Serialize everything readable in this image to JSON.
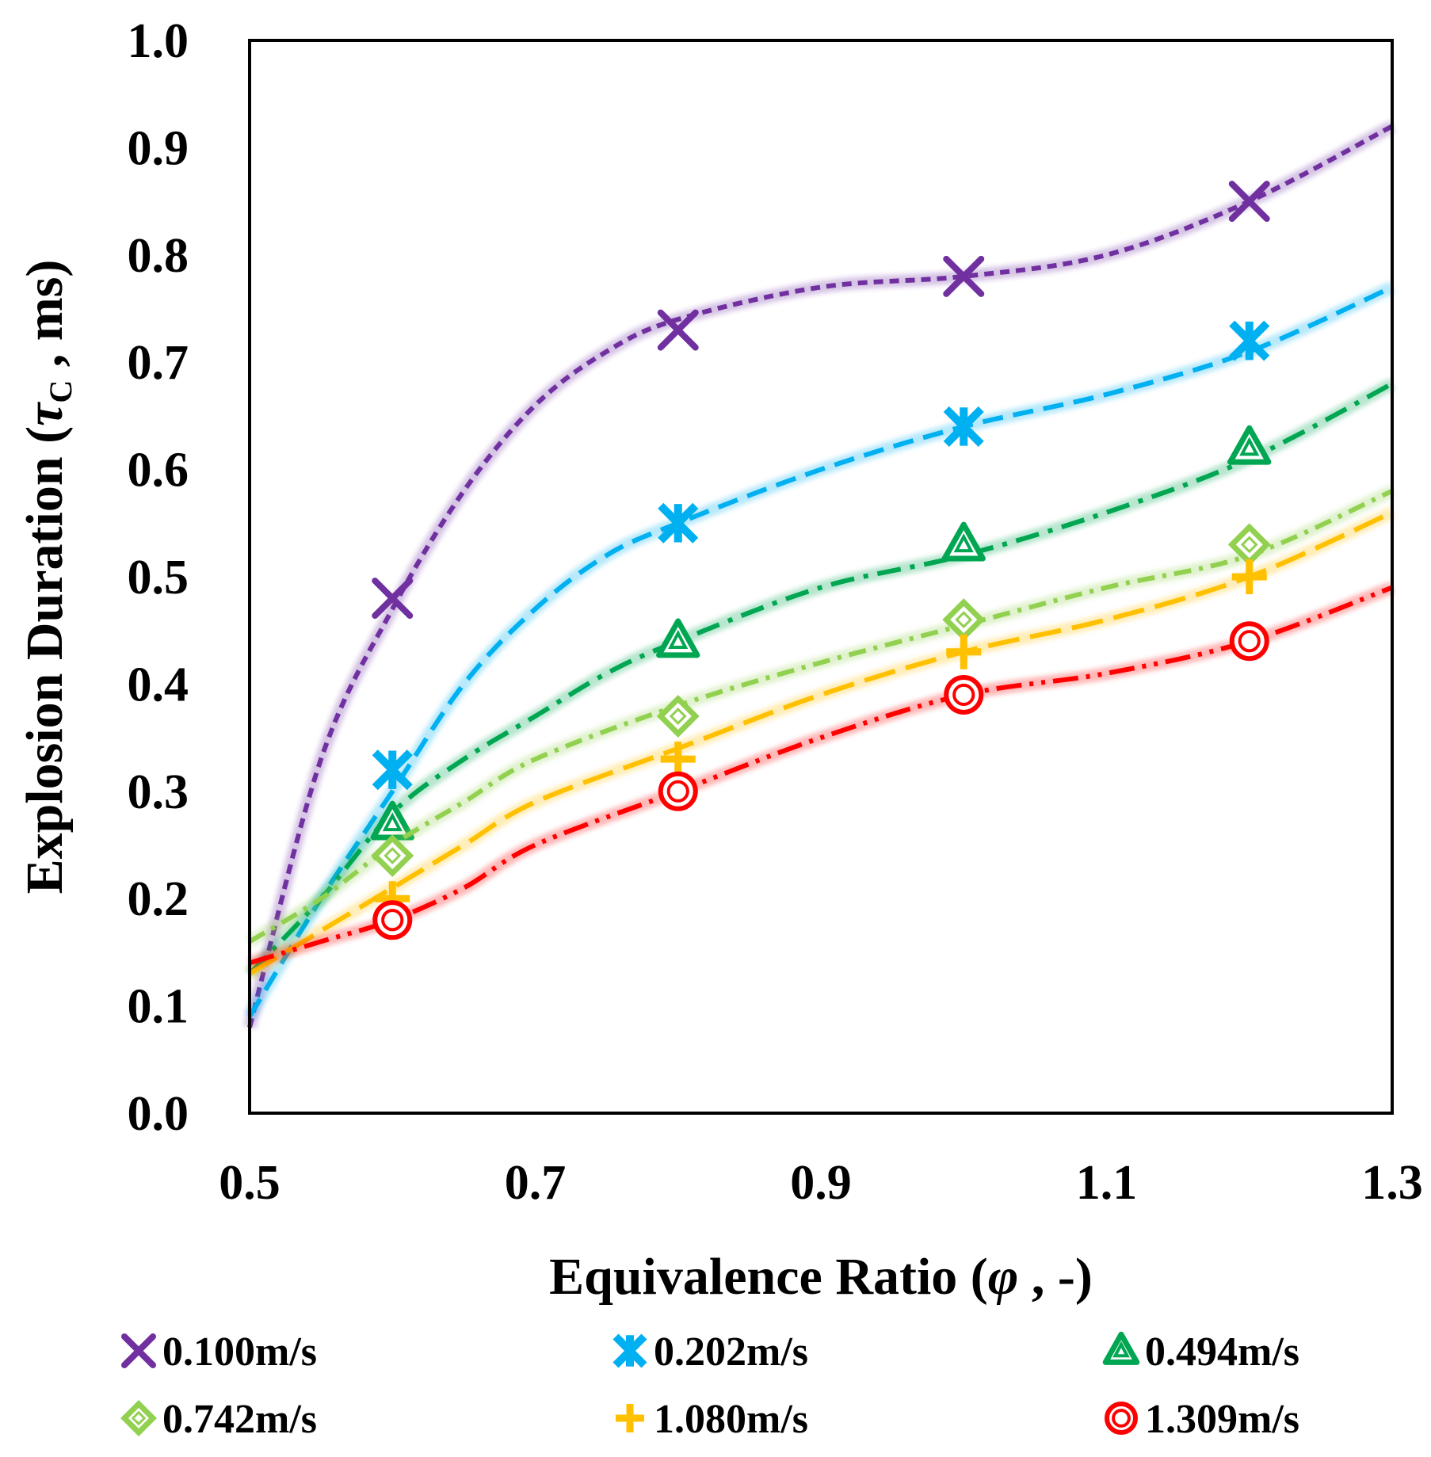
{
  "chart_data": {
    "type": "line",
    "title": "",
    "xlabel": "Equivalence Ratio (φ , -)",
    "xlabel_parts": {
      "main": "Equivalence Ratio (",
      "symbol": "φ",
      "tail": " , -)"
    },
    "ylabel": "Explosion Duration (τC , ms)",
    "ylabel_parts": {
      "main": "Explosion Duration (",
      "symbol": "τ",
      "sub": "C",
      "tail": " , ms)"
    },
    "xlim": [
      0.5,
      1.3
    ],
    "ylim": [
      0.0,
      1.0
    ],
    "x_ticks": [
      "0.5",
      "0.7",
      "0.9",
      "1.1",
      "1.3"
    ],
    "y_ticks": [
      "0.0",
      "0.1",
      "0.2",
      "0.3",
      "0.4",
      "0.5",
      "0.6",
      "0.7",
      "0.8",
      "0.9",
      "1.0"
    ],
    "grid": false,
    "legend_position": "bottom",
    "x": [
      0.6,
      0.8,
      1.0,
      1.2
    ],
    "series": [
      {
        "name": "0.100m/s",
        "color": "#7030A0",
        "marker": "x",
        "dash": "dashed-fine",
        "values": [
          0.48,
          0.73,
          0.78,
          0.85
        ],
        "trend": [
          [
            0.5,
            0.08
          ],
          [
            0.55,
            0.33
          ],
          [
            0.6,
            0.47
          ],
          [
            0.65,
            0.58
          ],
          [
            0.7,
            0.66
          ],
          [
            0.75,
            0.71
          ],
          [
            0.8,
            0.74
          ],
          [
            0.9,
            0.77
          ],
          [
            1.0,
            0.78
          ],
          [
            1.1,
            0.8
          ],
          [
            1.2,
            0.85
          ],
          [
            1.3,
            0.92
          ]
        ]
      },
      {
        "name": "0.202m/s",
        "color": "#00B0F0",
        "marker": "asterisk",
        "dash": "dashed",
        "values": [
          0.32,
          0.55,
          0.64,
          0.72
        ],
        "trend": [
          [
            0.5,
            0.09
          ],
          [
            0.55,
            0.2
          ],
          [
            0.6,
            0.3
          ],
          [
            0.65,
            0.4
          ],
          [
            0.7,
            0.47
          ],
          [
            0.75,
            0.52
          ],
          [
            0.8,
            0.55
          ],
          [
            0.9,
            0.6
          ],
          [
            1.0,
            0.64
          ],
          [
            1.1,
            0.67
          ],
          [
            1.2,
            0.71
          ],
          [
            1.3,
            0.77
          ]
        ]
      },
      {
        "name": "0.494m/s",
        "color": "#00A651",
        "marker": "triangle",
        "dash": "dash-dot",
        "values": [
          0.27,
          0.44,
          0.53,
          0.62
        ],
        "trend": [
          [
            0.5,
            0.13
          ],
          [
            0.55,
            0.2
          ],
          [
            0.6,
            0.28
          ],
          [
            0.65,
            0.33
          ],
          [
            0.7,
            0.37
          ],
          [
            0.75,
            0.41
          ],
          [
            0.8,
            0.44
          ],
          [
            0.9,
            0.49
          ],
          [
            1.0,
            0.52
          ],
          [
            1.1,
            0.56
          ],
          [
            1.2,
            0.61
          ],
          [
            1.3,
            0.68
          ]
        ]
      },
      {
        "name": "0.742m/s",
        "color": "#92D050",
        "marker": "diamond",
        "dash": "dash-dot-fine",
        "values": [
          0.24,
          0.37,
          0.46,
          0.53
        ],
        "trend": [
          [
            0.5,
            0.16
          ],
          [
            0.55,
            0.2
          ],
          [
            0.6,
            0.25
          ],
          [
            0.65,
            0.29
          ],
          [
            0.7,
            0.33
          ],
          [
            0.8,
            0.38
          ],
          [
            0.9,
            0.42
          ],
          [
            1.0,
            0.455
          ],
          [
            1.1,
            0.49
          ],
          [
            1.2,
            0.52
          ],
          [
            1.3,
            0.58
          ]
        ]
      },
      {
        "name": "1.080m/s",
        "color": "#FFC000",
        "marker": "plus",
        "dash": "long-dash",
        "values": [
          0.2,
          0.33,
          0.43,
          0.5
        ],
        "trend": [
          [
            0.5,
            0.13
          ],
          [
            0.55,
            0.17
          ],
          [
            0.6,
            0.21
          ],
          [
            0.65,
            0.25
          ],
          [
            0.7,
            0.29
          ],
          [
            0.8,
            0.34
          ],
          [
            0.9,
            0.39
          ],
          [
            1.0,
            0.43
          ],
          [
            1.1,
            0.46
          ],
          [
            1.2,
            0.5
          ],
          [
            1.3,
            0.56
          ]
        ]
      },
      {
        "name": "1.309m/s",
        "color": "#FF0000",
        "marker": "circle",
        "dash": "dash-dot-dot",
        "values": [
          0.18,
          0.3,
          0.39,
          0.44
        ],
        "trend": [
          [
            0.5,
            0.14
          ],
          [
            0.55,
            0.16
          ],
          [
            0.6,
            0.18
          ],
          [
            0.65,
            0.21
          ],
          [
            0.7,
            0.25
          ],
          [
            0.8,
            0.3
          ],
          [
            0.9,
            0.35
          ],
          [
            1.0,
            0.39
          ],
          [
            1.1,
            0.41
          ],
          [
            1.2,
            0.44
          ],
          [
            1.3,
            0.49
          ]
        ]
      }
    ]
  }
}
